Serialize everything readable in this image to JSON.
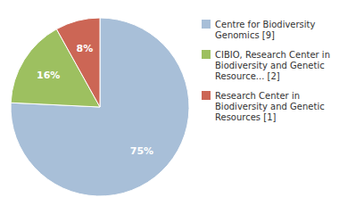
{
  "chart_data": {
    "type": "pie",
    "categories": [
      "Centre for Biodiversity\nGenomics [9]",
      "CIBIO, Research Center in\nBiodiversity and Genetic\nResource... [2]",
      "Research Center in\nBiodiversity and Genetic\nResources [1]"
    ],
    "values": [
      75,
      16,
      8
    ],
    "value_labels": [
      "75%",
      "16%",
      "8%"
    ],
    "colors": [
      "#a8bfd8",
      "#9dc060",
      "#cc6655"
    ],
    "data_labels": true,
    "legend": "right"
  }
}
